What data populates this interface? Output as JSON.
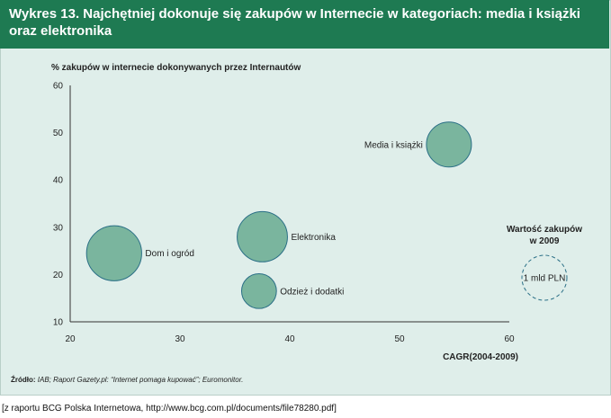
{
  "title": "Wykres 13. Najchętniej dokonuje się zakupów w Internecie w kategoriach: media i książki oraz elektronika",
  "source_label": "Źródło:",
  "source_text": " IAB; Raport Gazety.pl: “Internet pomaga kupować”; Euromonitor.",
  "caption": "[z raportu BCG Polska Internetowa, http://www.bcg.com.pl/documents/file78280.pdf]",
  "legend": {
    "title_line1": "Wartość zakupów",
    "title_line2": "w 2009",
    "bubble_label": "1 mld PLN",
    "bubble_value": 1
  },
  "colors": {
    "header": "#1e7a52",
    "background": "#dfeeea",
    "bubble": "#7ab59e",
    "bubble_stroke": "#2a6f86",
    "axis": "#333333"
  },
  "chart_data": {
    "type": "scatter",
    "title": "Wykres 13. Najchętniej dokonuje się zakupów w Internecie w kategoriach: media i książki oraz elektronika",
    "xlabel": "CAGR(2004-2009)",
    "ylabel": "% zakupów w internecie dokonywanych przez Internautów",
    "xlim": [
      20,
      60
    ],
    "ylim": [
      10,
      60
    ],
    "xticks": [
      20,
      30,
      40,
      50,
      60
    ],
    "yticks": [
      10,
      20,
      30,
      40,
      50,
      60
    ],
    "grid": false,
    "points": [
      {
        "label": "Media i książki",
        "x": 54.5,
        "y": 47.5,
        "size": 1.0,
        "label_side": "left"
      },
      {
        "label": "Elektronika",
        "x": 37.5,
        "y": 28,
        "size": 1.25,
        "label_side": "right"
      },
      {
        "label": "Dom i ogród",
        "x": 24,
        "y": 24.5,
        "size": 1.5,
        "label_side": "right"
      },
      {
        "label": "Odzież i dodatki",
        "x": 37.2,
        "y": 16.5,
        "size": 0.6,
        "label_side": "right"
      }
    ]
  }
}
